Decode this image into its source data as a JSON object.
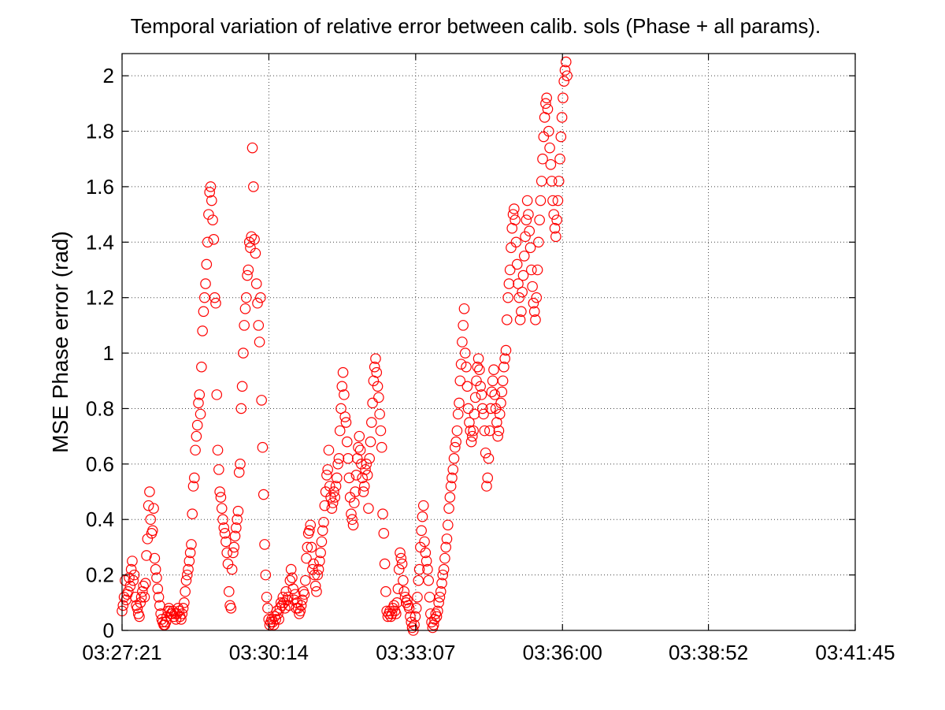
{
  "chart_data": {
    "type": "scatter",
    "title": "Temporal variation of relative error between calib. sols (Phase + all params).",
    "xlabel": "",
    "ylabel": "MSE Phase error (rad)",
    "x_ticks": [
      "03:27:21",
      "03:30:14",
      "03:33:07",
      "03:36:00",
      "03:38:52",
      "03:41:45"
    ],
    "x_range": [
      "03:27:21",
      "03:41:45"
    ],
    "y_ticks": [
      "0",
      "0.2",
      "0.4",
      "0.6",
      "0.8",
      "1",
      "1.2",
      "1.4",
      "1.6",
      "1.8",
      "2"
    ],
    "ylim": [
      0,
      2.08
    ],
    "grid": true,
    "legend": "none",
    "marker": "circle-open",
    "color": "#ff0000",
    "series": [
      {
        "x_start": "03:27:21",
        "sample_interval_s": 1.2,
        "values": [
          0.07,
          0.09,
          0.12,
          0.18,
          0.11,
          0.13,
          0.14,
          0.19,
          0.16,
          0.22,
          0.25,
          0.18,
          0.2,
          0.12,
          0.09,
          0.08,
          0.06,
          0.05,
          0.1,
          0.12,
          0.14,
          0.16,
          0.12,
          0.17,
          0.27,
          0.33,
          0.45,
          0.5,
          0.4,
          0.35,
          0.36,
          0.44,
          0.26,
          0.22,
          0.19,
          0.15,
          0.12,
          0.09,
          0.06,
          0.04,
          0.03,
          0.02,
          0.02,
          0.03,
          0.05,
          0.07,
          0.08,
          0.07,
          0.06,
          0.06,
          0.07,
          0.05,
          0.06,
          0.04,
          0.06,
          0.08,
          0.07,
          0.05,
          0.04,
          0.06,
          0.08,
          0.1,
          0.14,
          0.18,
          0.2,
          0.22,
          0.25,
          0.28,
          0.31,
          0.42,
          0.52,
          0.55,
          0.65,
          0.7,
          0.74,
          0.82,
          0.85,
          0.78,
          0.95,
          1.08,
          1.15,
          1.2,
          1.25,
          1.32,
          1.4,
          1.5,
          1.58,
          1.6,
          1.55,
          1.48,
          1.41,
          1.2,
          1.18,
          0.85,
          0.65,
          0.58,
          0.5,
          0.48,
          0.44,
          0.4,
          0.37,
          0.35,
          0.32,
          0.28,
          0.24,
          0.14,
          0.09,
          0.08,
          0.22,
          0.28,
          0.3,
          0.34,
          0.37,
          0.4,
          0.43,
          0.57,
          0.6,
          0.8,
          0.88,
          1.0,
          1.1,
          1.16,
          1.2,
          1.28,
          1.3,
          1.4,
          1.38,
          1.42,
          1.74,
          1.6,
          1.41,
          1.36,
          1.25,
          1.18,
          1.1,
          1.04,
          1.2,
          0.83,
          0.66,
          0.49,
          0.31,
          0.2,
          0.12,
          0.08,
          0.04,
          0.02,
          0.03,
          0.04,
          0.03,
          0.02,
          0.05,
          0.04,
          0.07,
          0.06,
          0.04,
          0.08,
          0.1,
          0.09,
          0.12,
          0.1,
          0.08,
          0.14,
          0.11,
          0.12,
          0.09,
          0.18,
          0.22,
          0.19,
          0.15,
          0.11,
          0.13,
          0.08,
          0.1,
          0.08,
          0.06,
          0.07,
          0.09,
          0.11,
          0.14,
          0.13,
          0.18,
          0.26,
          0.3,
          0.35,
          0.36,
          0.38,
          0.3,
          0.22,
          0.24,
          0.2,
          0.16,
          0.14,
          0.2,
          0.22,
          0.25,
          0.28,
          0.32,
          0.36,
          0.39,
          0.45,
          0.5,
          0.56,
          0.58,
          0.65,
          0.52,
          0.48,
          0.44,
          0.46,
          0.5,
          0.48,
          0.52,
          0.55,
          0.6,
          0.62,
          0.72,
          0.8,
          0.88,
          0.93,
          0.85,
          0.77,
          0.75,
          0.68,
          0.62,
          0.55,
          0.48,
          0.42,
          0.4,
          0.38,
          0.46,
          0.5,
          0.56,
          0.62,
          0.66,
          0.7,
          0.65,
          0.6,
          0.55,
          0.5,
          0.52,
          0.58,
          0.6,
          0.56,
          0.44,
          0.62,
          0.68,
          0.75,
          0.82,
          0.9,
          0.95,
          0.98,
          0.93,
          0.88,
          0.84,
          0.78,
          0.72,
          0.66,
          0.42,
          0.35,
          0.24,
          0.14,
          0.07,
          0.05,
          0.06,
          0.07,
          0.05,
          0.06,
          0.08,
          0.09,
          0.07,
          0.06,
          0.1,
          0.15,
          0.22,
          0.28,
          0.26,
          0.24,
          0.18,
          0.14,
          0.12,
          0.1,
          0.11,
          0.09,
          0.08,
          0.05,
          0.03,
          0.01,
          0.0,
          0.02,
          0.05,
          0.08,
          0.12,
          0.18,
          0.22,
          0.3,
          0.36,
          0.41,
          0.45,
          0.32,
          0.28,
          0.25,
          0.22,
          0.18,
          0.12,
          0.06,
          0.03,
          0.01,
          0.02,
          0.04,
          0.06,
          0.05,
          0.07,
          0.1,
          0.12,
          0.14,
          0.17,
          0.2,
          0.22,
          0.26,
          0.3,
          0.33,
          0.38,
          0.44,
          0.48,
          0.52,
          0.55,
          0.58,
          0.62,
          0.66,
          0.68,
          0.72,
          0.78,
          0.82,
          0.9,
          0.96,
          1.04,
          1.1,
          1.16,
          1.0,
          0.95,
          0.88,
          0.8,
          0.75,
          0.72,
          0.68,
          0.7,
          0.72,
          0.78,
          0.84,
          0.9,
          0.95,
          0.98,
          0.94,
          0.88,
          0.85,
          0.8,
          0.78,
          0.72,
          0.64,
          0.52,
          0.55,
          0.62,
          0.72,
          0.8,
          0.86,
          0.9,
          0.94,
          0.85,
          0.8,
          0.75,
          0.7,
          0.72,
          0.78,
          0.82,
          0.86,
          0.9,
          0.95,
          0.98,
          1.01,
          1.12,
          1.2,
          1.25,
          1.3,
          1.38,
          1.45,
          1.5,
          1.52,
          1.48,
          1.4,
          1.32,
          1.25,
          1.2,
          1.12,
          1.15,
          1.22,
          1.28,
          1.35,
          1.42,
          1.48,
          1.55,
          1.5,
          1.44,
          1.38,
          1.3,
          1.24,
          1.18,
          1.15,
          1.12,
          1.2,
          1.3,
          1.4,
          1.48,
          1.55,
          1.62,
          1.7,
          1.78,
          1.85,
          1.9,
          1.92,
          1.88,
          1.8,
          1.74,
          1.68,
          1.62,
          1.55,
          1.5,
          1.45,
          1.42,
          1.48,
          1.55,
          1.62,
          1.7,
          1.78,
          1.85,
          1.92,
          1.98,
          2.02,
          2.05,
          2.0
        ]
      }
    ]
  }
}
